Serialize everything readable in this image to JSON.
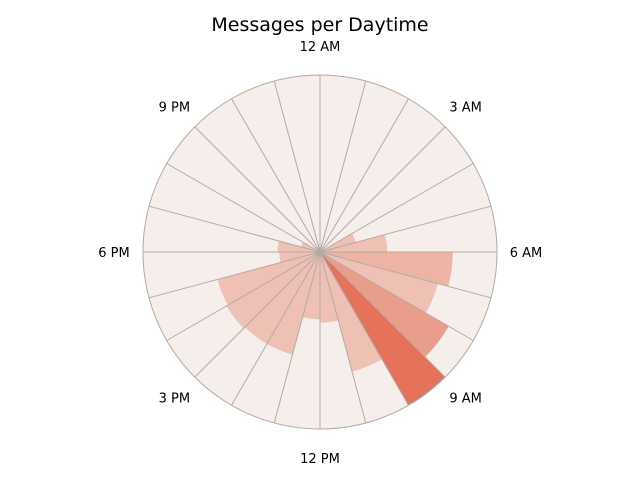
{
  "chart_data": {
    "type": "polar-bar",
    "title": "Messages per Daytime",
    "theta_labels": [
      "12 AM",
      "3 AM",
      "6 AM",
      "9 AM",
      "12 PM",
      "3 PM",
      "6 PM",
      "9 PM"
    ],
    "theta_direction": "clockwise",
    "theta_zero": "top",
    "hours": [
      0,
      1,
      2,
      3,
      4,
      5,
      6,
      7,
      8,
      9,
      10,
      11,
      12,
      13,
      14,
      15,
      16,
      17,
      18,
      19,
      20,
      21,
      22,
      23
    ],
    "values": [
      0,
      0,
      0,
      0,
      21,
      38,
      75,
      69,
      84,
      100,
      70,
      40,
      38,
      60,
      60,
      61,
      60,
      23,
      24,
      11,
      0,
      0,
      0,
      0
    ],
    "value_max": 100,
    "colors": {
      "background_wedge": "#f6eeeb",
      "low": "#efc1b4",
      "high": "#e5735a",
      "grid": "#b2aaa7"
    }
  }
}
